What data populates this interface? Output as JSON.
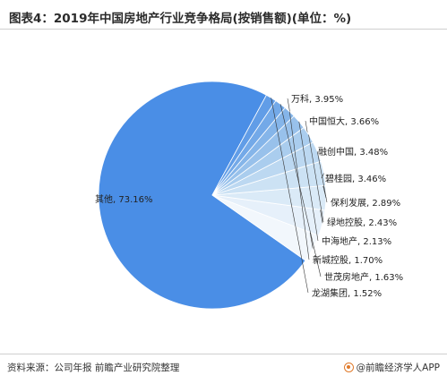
{
  "title": "图表4：2019年中国房地产行业竞争格局(按销售额)(单位：%)",
  "colors": {
    "main": "#4a8ee6",
    "light": "#f2f7fc",
    "slice_edge": "#ffffff",
    "leader": "#333333"
  },
  "chart_data": {
    "type": "pie",
    "categories": [
      "其他",
      "万科",
      "中国恒大",
      "融创中国",
      "碧桂园",
      "保利发展",
      "绿地控股",
      "中海地产",
      "新城控股",
      "世茂房地产",
      "龙湖集团"
    ],
    "values": [
      73.16,
      3.95,
      3.66,
      3.48,
      3.46,
      2.89,
      2.43,
      2.13,
      1.7,
      1.63,
      1.52
    ],
    "labels": [
      "其他, 73.16%",
      "万科, 3.95%",
      "中国恒大, 3.66%",
      "融创中国, 3.48%",
      "碧桂园, 3.46%",
      "保利发展, 2.89%",
      "绿地控股, 2.43%",
      "中海地产, 2.13%",
      "新城控股, 1.70%",
      "世茂房地产, 1.63%",
      "龙湖集团, 1.52%"
    ],
    "slice_colors": [
      "#4a8ee6",
      "#f2f7fc",
      "#e6f0fa",
      "#daeaf7",
      "#cce2f4",
      "#bcd8f1",
      "#aacdee",
      "#98c1eb",
      "#85b5e9",
      "#73a9e8",
      "#619de7"
    ],
    "start_angle_deg": 61.6
  },
  "footer": {
    "source": "资料来源：公司年报 前瞻产业研究院整理",
    "brand": "@前瞻经济学人APP"
  }
}
